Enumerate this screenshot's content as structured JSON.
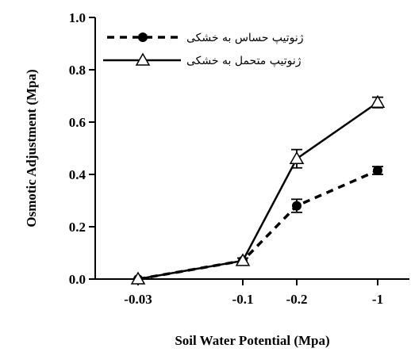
{
  "chart_data": {
    "type": "line",
    "title": "",
    "xlabel": "Soil Water Potential (Mpa)",
    "ylabel": "Osmotic Adjustment (Mpa)",
    "categories": [
      "-0.03",
      "-0.1",
      "-0.2",
      "-1"
    ],
    "ylim": [
      0,
      1.0
    ],
    "yticks": [
      "0.0",
      "0.2",
      "0.4",
      "0.6",
      "0.8",
      "1.0"
    ],
    "legend_position": "top-left",
    "grid": false,
    "series": [
      {
        "name": "ژنوتیپ حساس به خشکی",
        "line_style": "dashed",
        "marker": "filled-circle",
        "color": "#000000",
        "values": [
          0.0,
          0.07,
          0.28,
          0.415
        ],
        "errors": [
          0.0,
          0.01,
          0.025,
          0.015
        ]
      },
      {
        "name": "ژنوتیپ متحمل به خشکی",
        "line_style": "solid",
        "marker": "open-triangle",
        "color": "#000000",
        "values": [
          0.0,
          0.07,
          0.46,
          0.675
        ],
        "errors": [
          0.0,
          0.01,
          0.035,
          0.02
        ]
      }
    ]
  }
}
